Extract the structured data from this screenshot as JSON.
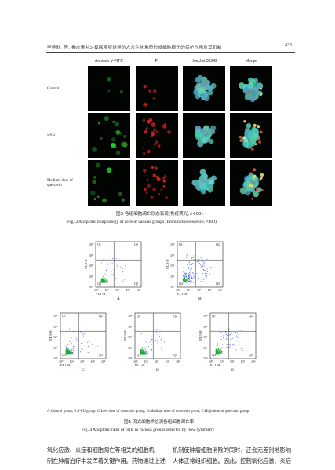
{
  "header": {
    "running_title": "李佳欣, 等.  槲皮素对5-氟尿嘧啶诱导的人永生化角质形成细胞损伤的保护作用及其机制",
    "page_number": "433"
  },
  "figure3": {
    "columns": [
      "Annexin Ⅴ-FITC",
      "PI",
      "Hoechst 33342",
      "Merge"
    ],
    "rows": [
      "Control",
      "5-FU",
      "Medium dose of quercetin"
    ],
    "caption_cn": "图3   各组细胞凋亡形态表现(免疫荧光,×400)",
    "caption_en": "Fig. 3   Apoptotic morphology of cells in various groups (Immunofluorescence, ×400)"
  },
  "figure4": {
    "chart_data": [
      {
        "type": "scatter",
        "letter": "A",
        "xlabel": "FL1-H",
        "ylabel": "FL3-H",
        "quadrants": [
          "Q1",
          "Q2",
          "Q3",
          "Q4"
        ],
        "x_ticks": [
          "10⁰",
          "10¹",
          "10²",
          "10³",
          "10⁴"
        ],
        "y_ticks": [
          "10⁰",
          "10¹",
          "10²",
          "10³",
          "10⁴"
        ]
      },
      {
        "type": "scatter",
        "letter": "B",
        "xlabel": "FL1-H",
        "ylabel": "FL3-H",
        "quadrants": [
          "Q1",
          "Q2",
          "Q3",
          "Q4"
        ],
        "x_ticks": [
          "10⁰",
          "10¹",
          "10²",
          "10³",
          "10⁴"
        ],
        "y_ticks": [
          "10⁰",
          "10¹",
          "10²",
          "10³",
          "10⁴"
        ]
      },
      {
        "type": "scatter",
        "letter": "C",
        "xlabel": "FL1-H",
        "ylabel": "FL3-H",
        "quadrants": [
          "Q1",
          "Q2",
          "Q3",
          "Q4"
        ],
        "x_ticks": [
          "10⁰",
          "10¹",
          "10²",
          "10³",
          "10⁴"
        ],
        "y_ticks": [
          "10⁰",
          "10¹",
          "10²",
          "10³",
          "10⁴"
        ]
      },
      {
        "type": "scatter",
        "letter": "D",
        "xlabel": "FL1-H",
        "ylabel": "FL3-H",
        "quadrants": [
          "Q1",
          "Q2",
          "Q3",
          "Q4"
        ],
        "x_ticks": [
          "10⁰",
          "10¹",
          "10²",
          "10³",
          "10⁴"
        ],
        "y_ticks": [
          "10⁰",
          "10¹",
          "10²",
          "10³",
          "10⁴"
        ]
      },
      {
        "type": "scatter",
        "letter": "E",
        "xlabel": "FL1-H",
        "ylabel": "FL3-H",
        "quadrants": [
          "Q1",
          "Q2",
          "Q3",
          "Q4"
        ],
        "x_ticks": [
          "10⁰",
          "10¹",
          "10²",
          "10³",
          "10⁴"
        ],
        "y_ticks": [
          "10⁰",
          "10¹",
          "10²",
          "10³",
          "10⁴"
        ]
      }
    ],
    "legend": "A:Control group; B:5-FU group; C:Low dose of quercetin group; D:Medium dose of quercetin group; E:High dose of quercetin group.",
    "caption_cn": "图4   流式细胞术检测各组细胞凋亡率",
    "caption_en": "Fig. 4   Apoptotic rates of cells in various groups detected by flow cytometry"
  },
  "body": {
    "left_line1": "氧化应激、炎症和细胞凋亡等相关的细胞机",
    "left_line2": "制在肿瘤治疗中发挥着关键作用。药物通过上述",
    "right_line1": "机制使肿瘤细胞消除的同时，还会无差别地影响",
    "right_line2": "人体正常组织细胞。因此，控制氧化应激、炎症"
  },
  "colors": {
    "scatter_dot": "#1f3fd6",
    "scatter_dense": "#1fa83a",
    "axis": "#222222"
  }
}
